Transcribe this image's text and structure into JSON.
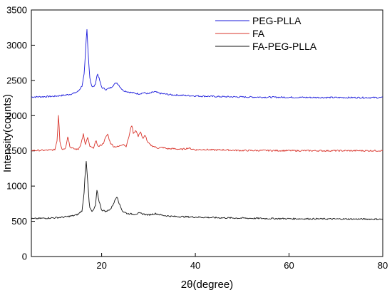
{
  "chart_data": {
    "type": "line",
    "title": "",
    "xlabel": "2θ(degree)",
    "ylabel": "Intensity(counts)",
    "xlim": [
      5,
      80
    ],
    "ylim": [
      0,
      3500
    ],
    "xticks": [
      20,
      40,
      60,
      80
    ],
    "yticks": [
      0,
      500,
      1000,
      1500,
      2000,
      2500,
      3000,
      3500
    ],
    "xtick_labels": [
      "20",
      "40",
      "60",
      "80"
    ],
    "ytick_labels": [
      "0",
      "500",
      "1000",
      "1500",
      "2000",
      "2500",
      "3000",
      "3500"
    ],
    "grid": false,
    "legend_position": "top-right",
    "series": [
      {
        "name": "PEG-PLLA",
        "color": "#1a1adb",
        "points": [
          [
            5,
            2265
          ],
          [
            8,
            2270
          ],
          [
            10,
            2275
          ],
          [
            12,
            2290
          ],
          [
            13,
            2300
          ],
          [
            14,
            2315
          ],
          [
            15,
            2345
          ],
          [
            15.8,
            2420
          ],
          [
            16.3,
            2600
          ],
          [
            16.6,
            2950
          ],
          [
            16.85,
            3240
          ],
          [
            17.1,
            2900
          ],
          [
            17.5,
            2520
          ],
          [
            18,
            2400
          ],
          [
            18.6,
            2430
          ],
          [
            19.1,
            2600
          ],
          [
            19.5,
            2520
          ],
          [
            20,
            2400
          ],
          [
            21,
            2370
          ],
          [
            22,
            2400
          ],
          [
            22.6,
            2440
          ],
          [
            23.2,
            2470
          ],
          [
            23.7,
            2430
          ],
          [
            24.5,
            2360
          ],
          [
            25.5,
            2340
          ],
          [
            26.5,
            2325
          ],
          [
            28,
            2310
          ],
          [
            29,
            2325
          ],
          [
            30,
            2310
          ],
          [
            31.3,
            2340
          ],
          [
            32.5,
            2315
          ],
          [
            35,
            2295
          ],
          [
            40,
            2280
          ],
          [
            45,
            2270
          ],
          [
            50,
            2265
          ],
          [
            55,
            2262
          ],
          [
            60,
            2260
          ],
          [
            65,
            2258
          ],
          [
            70,
            2257
          ],
          [
            75,
            2256
          ],
          [
            80,
            2256
          ]
        ]
      },
      {
        "name": "FA",
        "color": "#d9342b",
        "points": [
          [
            5,
            1505
          ],
          [
            8,
            1508
          ],
          [
            10,
            1515
          ],
          [
            10.5,
            1650
          ],
          [
            10.8,
            2030
          ],
          [
            11.1,
            1620
          ],
          [
            11.6,
            1520
          ],
          [
            12.3,
            1540
          ],
          [
            12.8,
            1720
          ],
          [
            13.2,
            1560
          ],
          [
            14,
            1530
          ],
          [
            15,
            1520
          ],
          [
            15.6,
            1600
          ],
          [
            16.1,
            1740
          ],
          [
            16.5,
            1580
          ],
          [
            17,
            1690
          ],
          [
            17.5,
            1560
          ],
          [
            18.2,
            1540
          ],
          [
            18.8,
            1640
          ],
          [
            19.3,
            1560
          ],
          [
            20.3,
            1600
          ],
          [
            20.8,
            1680
          ],
          [
            21.3,
            1740
          ],
          [
            21.8,
            1620
          ],
          [
            22.6,
            1560
          ],
          [
            23.6,
            1560
          ],
          [
            24.6,
            1600
          ],
          [
            25.2,
            1560
          ],
          [
            25.9,
            1720
          ],
          [
            26.4,
            1880
          ],
          [
            26.8,
            1740
          ],
          [
            27.3,
            1800
          ],
          [
            27.8,
            1700
          ],
          [
            28.3,
            1780
          ],
          [
            28.8,
            1660
          ],
          [
            29.3,
            1730
          ],
          [
            29.8,
            1620
          ],
          [
            30.5,
            1580
          ],
          [
            31.2,
            1560
          ],
          [
            32,
            1540
          ],
          [
            33,
            1550
          ],
          [
            34,
            1530
          ],
          [
            35.5,
            1530
          ],
          [
            37,
            1520
          ],
          [
            38.5,
            1540
          ],
          [
            40,
            1515
          ],
          [
            42,
            1520
          ],
          [
            44,
            1512
          ],
          [
            46,
            1515
          ],
          [
            48,
            1508
          ],
          [
            50,
            1505
          ],
          [
            55,
            1505
          ],
          [
            60,
            1503
          ],
          [
            65,
            1502
          ],
          [
            70,
            1502
          ],
          [
            75,
            1502
          ],
          [
            80,
            1503
          ]
        ]
      },
      {
        "name": "FA-PEG-PLLA",
        "color": "#111111",
        "points": [
          [
            5,
            535
          ],
          [
            8,
            545
          ],
          [
            10,
            550
          ],
          [
            12,
            560
          ],
          [
            14,
            580
          ],
          [
            15,
            600
          ],
          [
            15.8,
            650
          ],
          [
            16.2,
            850
          ],
          [
            16.5,
            1200
          ],
          [
            16.7,
            1370
          ],
          [
            17,
            1100
          ],
          [
            17.4,
            700
          ],
          [
            18,
            630
          ],
          [
            18.7,
            720
          ],
          [
            19,
            950
          ],
          [
            19.4,
            800
          ],
          [
            20,
            660
          ],
          [
            21,
            640
          ],
          [
            22,
            680
          ],
          [
            22.8,
            790
          ],
          [
            23.3,
            860
          ],
          [
            23.8,
            740
          ],
          [
            24.5,
            640
          ],
          [
            25.5,
            610
          ],
          [
            27,
            600
          ],
          [
            28,
            615
          ],
          [
            30,
            590
          ],
          [
            31.5,
            610
          ],
          [
            33,
            585
          ],
          [
            35,
            570
          ],
          [
            40,
            560
          ],
          [
            45,
            550
          ],
          [
            50,
            545
          ],
          [
            55,
            540
          ],
          [
            60,
            537
          ],
          [
            65,
            535
          ],
          [
            70,
            533
          ],
          [
            75,
            532
          ],
          [
            80,
            530
          ]
        ]
      }
    ]
  }
}
